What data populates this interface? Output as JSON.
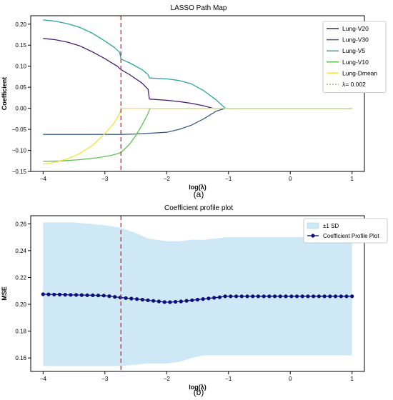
{
  "figure": {
    "panel_a_caption": "(a)",
    "panel_b_caption": "(b)"
  },
  "chart_data": [
    {
      "type": "line",
      "title": "LASSO Path Map",
      "xlabel": "log(λ)",
      "ylabel": "Coefficient",
      "xlim": [
        -4.2,
        1.2
      ],
      "ylim": [
        -0.15,
        0.22
      ],
      "xticks": [
        -4,
        -3,
        -2,
        -1,
        0,
        1
      ],
      "xtick_labels": [
        "−4",
        "−3",
        "−2",
        "−1",
        "0",
        "1"
      ],
      "yticks": [
        -0.15,
        -0.1,
        -0.05,
        0.0,
        0.05,
        0.1,
        0.15,
        0.2
      ],
      "ytick_labels": [
        "−0.15",
        "−0.10",
        "−0.05",
        "0.00",
        "0.05",
        "0.10",
        "0.15",
        "0.20"
      ],
      "grid": false,
      "legend_position": "top-right",
      "vline": {
        "x": -2.74,
        "label": "λ= 0.002",
        "color": "#e03030",
        "style": "dashed"
      },
      "series": [
        {
          "name": "Lung-V20",
          "color": "#4b1c6e",
          "x": [
            -4.0,
            -3.8,
            -3.6,
            -3.4,
            -3.2,
            -3.0,
            -2.9,
            -2.8,
            -2.74,
            -2.6,
            -2.4,
            -2.3,
            -2.28,
            -2.0,
            -1.8,
            -1.6,
            -1.4,
            -1.25,
            -1.1,
            1.0
          ],
          "y": [
            0.166,
            0.163,
            0.157,
            0.148,
            0.134,
            0.118,
            0.109,
            0.1,
            0.092,
            0.08,
            0.06,
            0.045,
            0.022,
            0.019,
            0.016,
            0.012,
            0.006,
            0.0,
            0.0,
            0.0
          ]
        },
        {
          "name": "Lung-V30",
          "color": "#3a5b94",
          "x": [
            -4.0,
            -3.0,
            -2.74,
            -2.5,
            -2.0,
            -1.8,
            -1.6,
            -1.4,
            -1.2,
            -1.05,
            1.0
          ],
          "y": [
            -0.062,
            -0.062,
            -0.062,
            -0.061,
            -0.057,
            -0.05,
            -0.04,
            -0.025,
            -0.007,
            0.0,
            0.0
          ]
        },
        {
          "name": "Lung-V5",
          "color": "#2aa5a0",
          "x": [
            -4.0,
            -3.8,
            -3.6,
            -3.4,
            -3.2,
            -3.0,
            -2.85,
            -2.76,
            -2.74,
            -2.6,
            -2.4,
            -2.3,
            -2.28,
            -2.0,
            -1.8,
            -1.6,
            -1.4,
            -1.2,
            -1.05,
            1.0
          ],
          "y": [
            0.21,
            0.207,
            0.201,
            0.192,
            0.178,
            0.16,
            0.145,
            0.133,
            0.117,
            0.108,
            0.092,
            0.08,
            0.072,
            0.07,
            0.066,
            0.058,
            0.042,
            0.02,
            0.0,
            0.0
          ]
        },
        {
          "name": "Lung-V10",
          "color": "#5ec054",
          "x": [
            -4.0,
            -3.7,
            -3.4,
            -3.1,
            -2.9,
            -2.8,
            -2.74,
            -2.6,
            -2.5,
            -2.4,
            -2.3,
            -2.27,
            1.0
          ],
          "y": [
            -0.126,
            -0.125,
            -0.122,
            -0.117,
            -0.112,
            -0.108,
            -0.105,
            -0.085,
            -0.065,
            -0.04,
            -0.012,
            0.0,
            0.0
          ]
        },
        {
          "name": "Lung-Dmean",
          "color": "#f2e33a",
          "x": [
            -4.0,
            -3.8,
            -3.6,
            -3.4,
            -3.2,
            -3.0,
            -2.85,
            -2.76,
            -2.73,
            1.0
          ],
          "y": [
            -0.133,
            -0.128,
            -0.12,
            -0.107,
            -0.088,
            -0.06,
            -0.035,
            -0.012,
            0.0,
            0.0
          ]
        }
      ]
    },
    {
      "type": "line",
      "title": "Coefficient profile plot",
      "xlabel": "log(λ)",
      "ylabel": "MSE",
      "xlim": [
        -4.2,
        1.2
      ],
      "ylim": [
        0.15,
        0.266
      ],
      "xticks": [
        -4,
        -3,
        -2,
        -1,
        0,
        1
      ],
      "xtick_labels": [
        "−4",
        "−3",
        "−2",
        "−1",
        "0",
        "1"
      ],
      "yticks": [
        0.16,
        0.18,
        0.2,
        0.22,
        0.24,
        0.26
      ],
      "ytick_labels": [
        "0.16",
        "0.18",
        "0.20",
        "0.22",
        "0.24",
        "0.26"
      ],
      "grid": false,
      "legend_position": "top-right",
      "vline": {
        "x": -2.74,
        "color": "#e03030",
        "style": "dashed"
      },
      "band": {
        "name": "±1 SD",
        "color": "#cfe8f5",
        "x": [
          -4.0,
          -3.5,
          -3.0,
          -2.74,
          -2.5,
          -2.3,
          -2.0,
          -1.8,
          -1.6,
          -1.4,
          -1.2,
          -1.05,
          -1.0,
          1.0
        ],
        "upper": [
          0.261,
          0.261,
          0.259,
          0.257,
          0.253,
          0.249,
          0.247,
          0.247,
          0.248,
          0.248,
          0.249,
          0.25,
          0.25,
          0.25
        ],
        "lower": [
          0.154,
          0.154,
          0.154,
          0.154,
          0.155,
          0.156,
          0.156,
          0.157,
          0.16,
          0.162,
          0.162,
          0.162,
          0.162,
          0.162
        ]
      },
      "series": [
        {
          "name": "Coefficient Profile Plot",
          "color": "#0b0f7a",
          "marker": "circle",
          "x": [
            -4.0,
            -3.5,
            -3.0,
            -2.74,
            -2.5,
            -2.2,
            -2.0,
            -1.8,
            -1.6,
            -1.4,
            -1.2,
            -1.1,
            -1.05,
            1.0
          ],
          "y": [
            0.2075,
            0.207,
            0.2065,
            0.205,
            0.204,
            0.2025,
            0.2015,
            0.202,
            0.203,
            0.204,
            0.205,
            0.2055,
            0.206,
            0.206
          ]
        }
      ]
    }
  ]
}
